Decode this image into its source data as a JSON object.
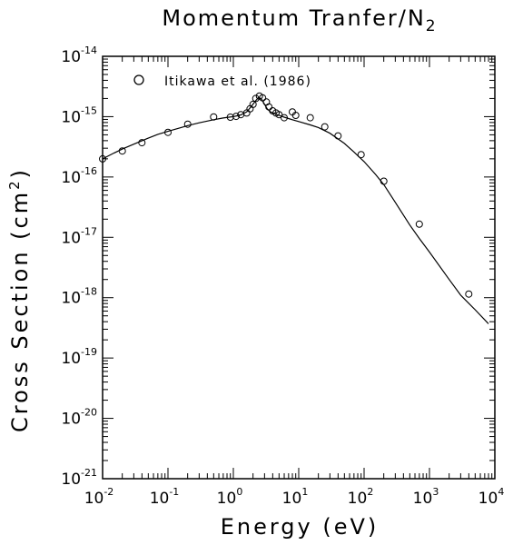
{
  "chart_data": {
    "type": "scatter",
    "title_main": "Momentum Tranfer/N",
    "title_sub": "2",
    "xlabel": "Energy (eV)",
    "ylabel_main": "Cross Section (cm",
    "ylabel_sup": "2",
    "ylabel_end": ")",
    "x_scale": "log",
    "y_scale": "log",
    "xlim": [
      0.01,
      10000
    ],
    "ylim": [
      1e-21,
      1e-14
    ],
    "x_tick_labels": [
      {
        "base": "10",
        "exp": "-2"
      },
      {
        "base": "10",
        "exp": "-1"
      },
      {
        "base": "10",
        "exp": "0"
      },
      {
        "base": "10",
        "exp": "1"
      },
      {
        "base": "10",
        "exp": "2"
      },
      {
        "base": "10",
        "exp": "3"
      },
      {
        "base": "10",
        "exp": "4"
      }
    ],
    "y_tick_labels": [
      {
        "base": "10",
        "exp": "-21"
      },
      {
        "base": "10",
        "exp": "-20"
      },
      {
        "base": "10",
        "exp": "-19"
      },
      {
        "base": "10",
        "exp": "-18"
      },
      {
        "base": "10",
        "exp": "-17"
      },
      {
        "base": "10",
        "exp": "-16"
      },
      {
        "base": "10",
        "exp": "-15"
      },
      {
        "base": "10",
        "exp": "-14"
      }
    ],
    "legend": {
      "position": "top-left",
      "entry": "Itikawa et al. (1986)"
    },
    "grid": false,
    "series": [
      {
        "kind": "line",
        "x": [
          0.01,
          0.015,
          0.02,
          0.03,
          0.05,
          0.07,
          0.1,
          0.15,
          0.2,
          0.3,
          0.5,
          0.7,
          1.0,
          1.3,
          1.6,
          1.9,
          2.2,
          2.45,
          2.7,
          3.0,
          3.3,
          3.7,
          4.1,
          4.5,
          5.0,
          6.0,
          7.0,
          8.0,
          10,
          15,
          20,
          30,
          50,
          70,
          100,
          150,
          200,
          300,
          500,
          700,
          1000,
          2000,
          3000,
          5000,
          8000
        ],
        "y": [
          2e-16,
          2.5e-16,
          2.9e-16,
          3.5e-16,
          4.4e-16,
          5.1e-16,
          5.7e-16,
          6.5e-16,
          7.1e-16,
          7.9e-16,
          8.9e-16,
          9.5e-16,
          1e-15,
          1.07e-15,
          1.2e-15,
          1.5e-15,
          1.85e-15,
          2.1e-15,
          1.95e-15,
          1.6e-15,
          1.35e-15,
          1.2e-15,
          1.15e-15,
          1.1e-15,
          1.05e-15,
          9.8e-16,
          9.3e-16,
          8.9e-16,
          8.3e-16,
          7.3e-16,
          6.6e-16,
          5.3e-16,
          3.6e-16,
          2.6e-16,
          1.8e-16,
          1.1e-16,
          7.5e-17,
          3.8e-17,
          1.6e-17,
          9.6e-18,
          5.7e-18,
          2e-18,
          1.1e-18,
          6.3e-19,
          3.7e-19
        ]
      },
      {
        "kind": "points",
        "name": "Itikawa et al. (1986)",
        "x": [
          0.01,
          0.02,
          0.04,
          0.1,
          0.2,
          0.5,
          0.9,
          1.1,
          1.3,
          1.6,
          1.8,
          2.0,
          2.2,
          2.5,
          2.8,
          3.2,
          3.5,
          4.0,
          4.5,
          5.0,
          6.0,
          8.0,
          9.0,
          15,
          25,
          40,
          90,
          200,
          700,
          4000
        ],
        "y": [
          2e-16,
          2.7e-16,
          3.7e-16,
          5.5e-16,
          7.5e-16,
          9.9e-16,
          9.8e-16,
          1.01e-15,
          1.08e-15,
          1.15e-15,
          1.35e-15,
          1.6e-15,
          2e-15,
          2.2e-15,
          2.05e-15,
          1.75e-15,
          1.45e-15,
          1.25e-15,
          1.15e-15,
          1.08e-15,
          9.6e-16,
          1.2e-15,
          1.05e-15,
          9.6e-16,
          6.8e-16,
          4.8e-16,
          2.35e-16,
          8.5e-17,
          1.65e-17,
          1.15e-18
        ]
      }
    ]
  }
}
